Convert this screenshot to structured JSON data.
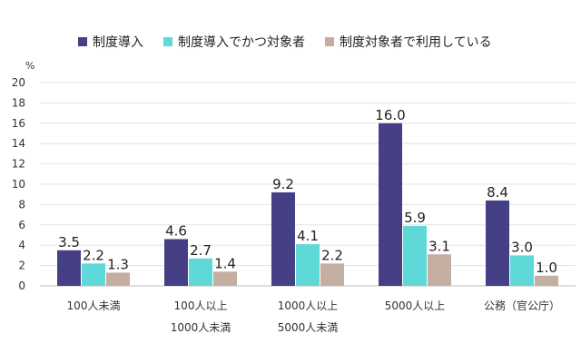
{
  "chart_data": {
    "type": "bar",
    "title": "",
    "ylabel": "%",
    "xlabel": "",
    "ylim": [
      0,
      20
    ],
    "yticks": [
      0,
      2,
      4,
      6,
      8,
      10,
      12,
      14,
      16,
      18,
      20
    ],
    "grid": true,
    "legend_position": "top",
    "categories": [
      [
        "100人未満"
      ],
      [
        "100人以上",
        "1000人未満"
      ],
      [
        "1000人以上",
        "5000人未満"
      ],
      [
        "5000人以上"
      ],
      [
        "公務（官公庁）"
      ]
    ],
    "series": [
      {
        "name": "制度導入",
        "color": "#453f86",
        "values": [
          3.5,
          4.6,
          9.2,
          16.0,
          8.4
        ]
      },
      {
        "name": "制度導入でかつ対象者",
        "color": "#5fd8d8",
        "values": [
          2.2,
          2.7,
          4.1,
          5.9,
          3.0
        ]
      },
      {
        "name": "制度対象者で利用している",
        "color": "#c4aea2",
        "values": [
          1.3,
          1.4,
          2.2,
          3.1,
          1.0
        ]
      }
    ]
  }
}
